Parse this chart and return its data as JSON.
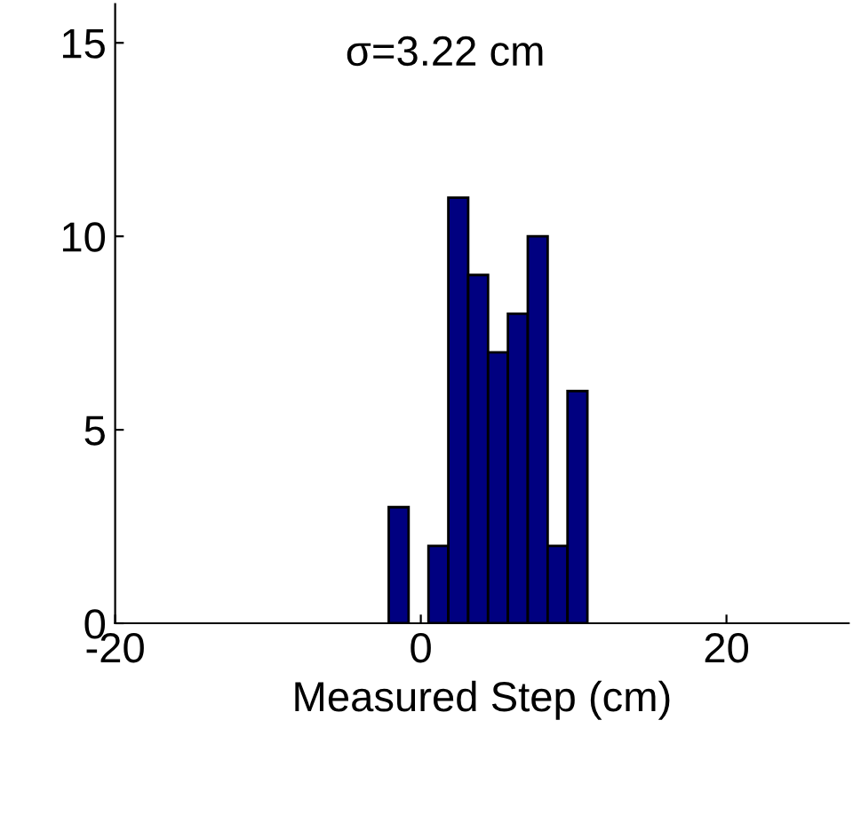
{
  "chart_data": {
    "type": "histogram",
    "xlabel": "Measured Step (cm)",
    "annotations": [
      "σ=3.22 cm"
    ],
    "bins": [
      -2.1,
      -0.8,
      0.5,
      1.8,
      3.1,
      4.4,
      5.7,
      7.0,
      8.3,
      9.6,
      10.9
    ],
    "values": [
      3,
      0,
      2,
      11,
      9,
      7,
      8,
      10,
      2,
      6
    ],
    "color": "#000080",
    "xlim": [
      -20,
      28
    ],
    "xticks": [
      -20,
      0,
      20
    ],
    "ylim": [
      0,
      16
    ],
    "yticks": [
      0,
      5,
      10,
      15
    ],
    "grid": false
  }
}
